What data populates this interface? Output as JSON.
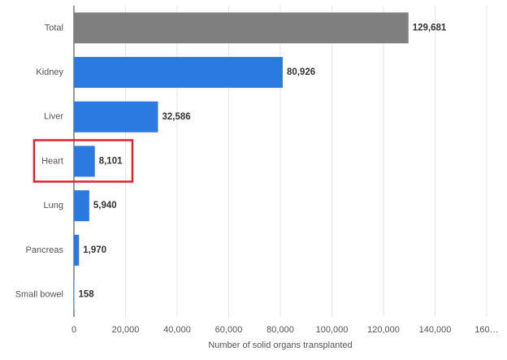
{
  "chart_data": {
    "type": "barh",
    "categories": [
      "Total",
      "Kidney",
      "Liver",
      "Heart",
      "Lung",
      "Pancreas",
      "Small bowel"
    ],
    "values": [
      129681,
      80926,
      32586,
      8101,
      5940,
      1970,
      158
    ],
    "value_labels": [
      "129,681",
      "80,926",
      "32,586",
      "8,101",
      "5,940",
      "1,970",
      "158"
    ],
    "colors": [
      "#7f7f7f",
      "#2a7ae2",
      "#2a7ae2",
      "#2a7ae2",
      "#2a7ae2",
      "#2a7ae2",
      "#2a7ae2"
    ],
    "highlight": 3,
    "highlight_color": "#d9232e",
    "xlabel": "Number of solid organs transplanted",
    "xlim": [
      0,
      160000
    ],
    "xticks": [
      0,
      {
        "value": 20000,
        "label": "20,000"
      },
      {
        "value": 40000,
        "label": "40,000"
      },
      {
        "value": 60000,
        "label": "60,000"
      },
      {
        "value": 80000,
        "label": "80,000"
      },
      {
        "value": 100000,
        "label": "100,000"
      },
      {
        "value": 120000,
        "label": "120,000"
      },
      {
        "value": 140000,
        "label": "140,000"
      },
      {
        "value": 160000,
        "label": "160…"
      }
    ],
    "grid": true
  }
}
